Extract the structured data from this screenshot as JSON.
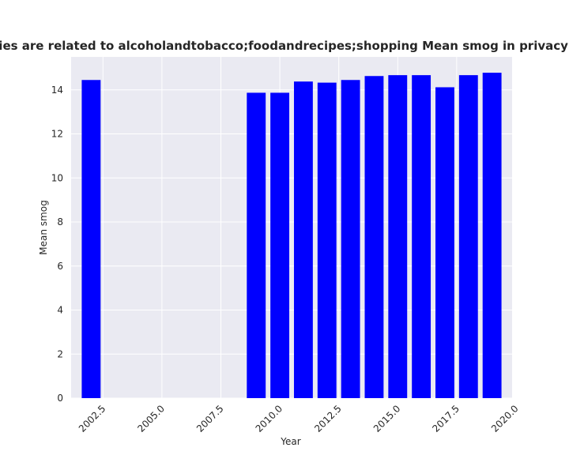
{
  "chart_data": {
    "type": "bar",
    "title": "Categories are related to alcoholandtobacco;foodandrecipes;shopping Mean smog in privacy policies",
    "xlabel": "Year",
    "ylabel": "Mean smog",
    "x": [
      2002,
      2009,
      2010,
      2011,
      2012,
      2013,
      2014,
      2015,
      2016,
      2017,
      2018,
      2019
    ],
    "values": [
      14.45,
      13.87,
      13.87,
      14.38,
      14.33,
      14.45,
      14.63,
      14.67,
      14.67,
      14.12,
      14.67,
      14.78
    ],
    "xlim": [
      2001.15,
      2019.85
    ],
    "ylim": [
      0,
      15.5
    ],
    "xticks": [
      2002.5,
      2005.0,
      2007.5,
      2010.0,
      2012.5,
      2015.0,
      2017.5,
      2020.0
    ],
    "xtick_labels": [
      "2002.5",
      "2005.0",
      "2007.5",
      "2010.0",
      "2012.5",
      "2015.0",
      "2017.5",
      "2020.0"
    ],
    "yticks": [
      0,
      2,
      4,
      6,
      8,
      10,
      12,
      14
    ],
    "ytick_labels": [
      "0",
      "2",
      "4",
      "6",
      "8",
      "10",
      "12",
      "14"
    ],
    "bar_color": "#0000ff",
    "grid": true,
    "background_color": "#eaeaf2",
    "grid_color": "#ffffff"
  }
}
